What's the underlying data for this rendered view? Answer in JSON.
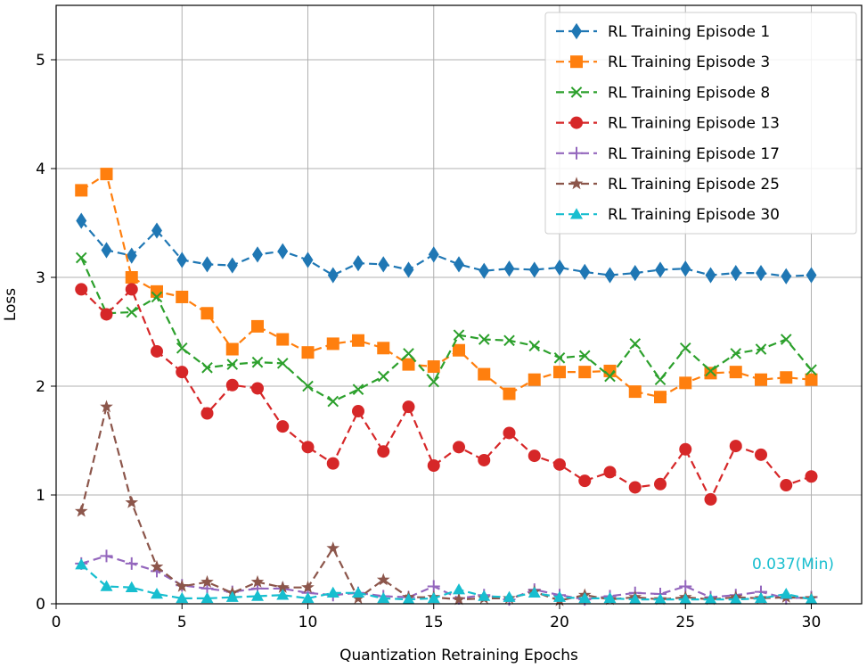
{
  "chart_data": {
    "type": "line",
    "title": "",
    "xlabel": "Quantization Retraining Epochs",
    "ylabel": "Loss",
    "xlim": [
      0,
      32
    ],
    "ylim": [
      0,
      5.5
    ],
    "xticks": [
      0,
      5,
      10,
      15,
      20,
      25,
      30
    ],
    "yticks": [
      0,
      1,
      2,
      3,
      4,
      5
    ],
    "grid": true,
    "legend_position": "top-right",
    "x": [
      1,
      2,
      3,
      4,
      5,
      6,
      7,
      8,
      9,
      10,
      11,
      12,
      13,
      14,
      15,
      16,
      17,
      18,
      19,
      20,
      21,
      22,
      23,
      24,
      25,
      26,
      27,
      28,
      29,
      30
    ],
    "series": [
      {
        "name": "RL Training Episode 1",
        "color": "#1f77b4",
        "marker": "diamond",
        "values": [
          3.52,
          3.25,
          3.2,
          3.43,
          3.16,
          3.12,
          3.11,
          3.21,
          3.24,
          3.16,
          3.02,
          3.13,
          3.12,
          3.07,
          3.21,
          3.12,
          3.06,
          3.08,
          3.07,
          3.09,
          3.05,
          3.02,
          3.04,
          3.07,
          3.08,
          3.02,
          3.04,
          3.04,
          3.01,
          3.02
        ]
      },
      {
        "name": "RL Training Episode 3",
        "color": "#ff7f0e",
        "marker": "square",
        "values": [
          3.8,
          3.95,
          3.0,
          2.87,
          2.82,
          2.67,
          2.34,
          2.55,
          2.43,
          2.31,
          2.39,
          2.42,
          2.35,
          2.2,
          2.18,
          2.33,
          2.11,
          1.93,
          2.06,
          2.13,
          2.13,
          2.14,
          1.95,
          1.9,
          2.03,
          2.12,
          2.13,
          2.06,
          2.08,
          2.06
        ]
      },
      {
        "name": "RL Training Episode 8",
        "color": "#2ca02c",
        "marker": "x",
        "values": [
          3.18,
          2.67,
          2.68,
          2.82,
          2.35,
          2.17,
          2.2,
          2.22,
          2.21,
          2.0,
          1.86,
          1.97,
          2.09,
          2.3,
          2.04,
          2.47,
          2.43,
          2.42,
          2.37,
          2.26,
          2.28,
          2.09,
          2.39,
          2.06,
          2.35,
          2.14,
          2.3,
          2.34,
          2.43,
          2.15
        ]
      },
      {
        "name": "RL Training Episode 13",
        "color": "#d62728",
        "marker": "circle",
        "values": [
          2.89,
          2.66,
          2.89,
          2.32,
          2.13,
          1.75,
          2.01,
          1.98,
          1.63,
          1.44,
          1.29,
          1.77,
          1.4,
          1.81,
          1.27,
          1.44,
          1.32,
          1.57,
          1.36,
          1.28,
          1.13,
          1.21,
          1.07,
          1.1,
          1.42,
          0.96,
          1.45,
          1.37,
          1.09,
          1.17
        ]
      },
      {
        "name": "RL Training Episode 17",
        "color": "#9467bd",
        "marker": "plus",
        "values": [
          0.37,
          0.44,
          0.37,
          0.3,
          0.17,
          0.14,
          0.11,
          0.14,
          0.14,
          0.1,
          0.08,
          0.1,
          0.07,
          0.06,
          0.16,
          0.05,
          0.08,
          0.04,
          0.13,
          0.08,
          0.04,
          0.07,
          0.1,
          0.09,
          0.16,
          0.06,
          0.08,
          0.11,
          0.05,
          0.06
        ]
      },
      {
        "name": "RL Training Episode 25",
        "color": "#8c564b",
        "marker": "star",
        "values": [
          0.85,
          1.81,
          0.93,
          0.34,
          0.16,
          0.2,
          0.1,
          0.2,
          0.15,
          0.15,
          0.51,
          0.05,
          0.22,
          0.06,
          0.06,
          0.04,
          0.05,
          0.05,
          0.11,
          0.03,
          0.08,
          0.04,
          0.06,
          0.04,
          0.06,
          0.04,
          0.06,
          0.05,
          0.06,
          0.05
        ]
      },
      {
        "name": "RL Training Episode 30",
        "color": "#17becf",
        "marker": "triangle",
        "values": [
          0.36,
          0.16,
          0.15,
          0.09,
          0.05,
          0.05,
          0.06,
          0.07,
          0.08,
          0.05,
          0.1,
          0.1,
          0.05,
          0.04,
          0.05,
          0.13,
          0.07,
          0.06,
          0.1,
          0.06,
          0.05,
          0.05,
          0.04,
          0.04,
          0.04,
          0.04,
          0.04,
          0.05,
          0.09,
          0.04
        ]
      }
    ],
    "annotations": [
      {
        "text": "0.037(Min)",
        "x": 30,
        "y": 0.037,
        "color": "#17becf"
      }
    ]
  }
}
